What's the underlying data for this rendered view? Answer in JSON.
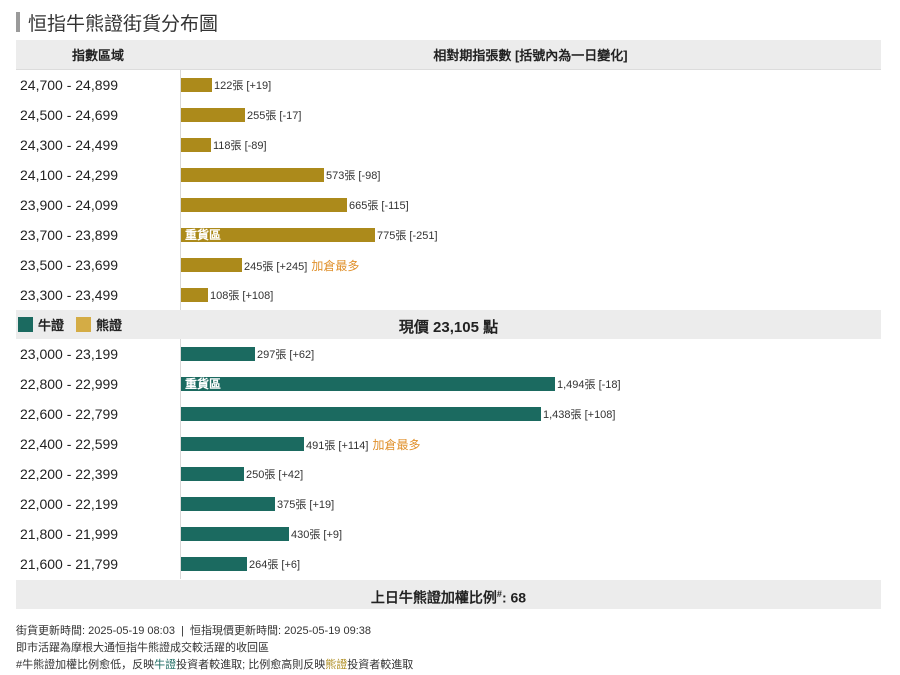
{
  "title": "恒指牛熊證街貨分布圖",
  "header": {
    "col1": "指數區域",
    "col2": "相對期指張數 [括號內為一日變化]"
  },
  "legend": {
    "bull": "牛證",
    "bear": "熊證"
  },
  "current_price": "現價 23,105 點",
  "heavy_label": "重貨區",
  "footer": {
    "prefix": "上日牛熊證加權比例",
    "mark": "#",
    "suffix": ": 68"
  },
  "notes": {
    "line1": "街貨更新時間: 2025-05-19 08:03  |  恒指現價更新時間: 2025-05-19 09:38",
    "line2": "即市活躍為摩根大通恒指牛熊證成交較活躍的收回區",
    "line3a": "#牛熊證加權比例愈低，反映",
    "line3b": "牛證",
    "line3c": "投資者較進取; 比例愈高則反映",
    "line3d": "熊證",
    "line3e": "投資者較進取"
  },
  "colors": {
    "bear": "#ac8a1b",
    "bull": "#1b6a60",
    "note": "#e0902b"
  },
  "chart_data": {
    "type": "bar",
    "orientation": "horizontal",
    "max_value": 1494,
    "bear": [
      {
        "range": "24,700 - 24,899",
        "value": 122,
        "label": "122張 [+19]",
        "heavy": false,
        "note": ""
      },
      {
        "range": "24,500 - 24,699",
        "value": 255,
        "label": "255張 [-17]",
        "heavy": false,
        "note": ""
      },
      {
        "range": "24,300 - 24,499",
        "value": 118,
        "label": "118張 [-89]",
        "heavy": false,
        "note": ""
      },
      {
        "range": "24,100 - 24,299",
        "value": 573,
        "label": "573張 [-98]",
        "heavy": false,
        "note": ""
      },
      {
        "range": "23,900 - 24,099",
        "value": 665,
        "label": "665張 [-115]",
        "heavy": false,
        "note": ""
      },
      {
        "range": "23,700 - 23,899",
        "value": 775,
        "label": "775張 [-251]",
        "heavy": true,
        "note": ""
      },
      {
        "range": "23,500 - 23,699",
        "value": 245,
        "label": "245張 [+245]",
        "heavy": false,
        "note": "加倉最多"
      },
      {
        "range": "23,300 - 23,499",
        "value": 108,
        "label": "108張 [+108]",
        "heavy": false,
        "note": ""
      }
    ],
    "bull": [
      {
        "range": "23,000 - 23,199",
        "value": 297,
        "label": "297張 [+62]",
        "heavy": false,
        "note": ""
      },
      {
        "range": "22,800 - 22,999",
        "value": 1494,
        "label": "1,494張 [-18]",
        "heavy": true,
        "note": ""
      },
      {
        "range": "22,600 - 22,799",
        "value": 1438,
        "label": "1,438張 [+108]",
        "heavy": false,
        "note": ""
      },
      {
        "range": "22,400 - 22,599",
        "value": 491,
        "label": "491張 [+114]",
        "heavy": false,
        "note": "加倉最多"
      },
      {
        "range": "22,200 - 22,399",
        "value": 250,
        "label": "250張 [+42]",
        "heavy": false,
        "note": ""
      },
      {
        "range": "22,000 - 22,199",
        "value": 375,
        "label": "375張 [+19]",
        "heavy": false,
        "note": ""
      },
      {
        "range": "21,800 - 21,999",
        "value": 430,
        "label": "430張 [+9]",
        "heavy": false,
        "note": ""
      },
      {
        "range": "21,600 - 21,799",
        "value": 264,
        "label": "264張 [+6]",
        "heavy": false,
        "note": ""
      }
    ]
  }
}
